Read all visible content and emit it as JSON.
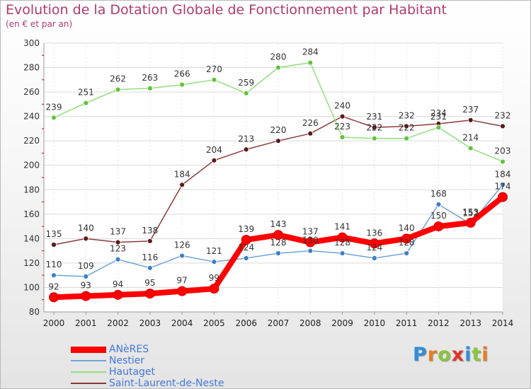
{
  "header": {
    "title": "Evolution de la Dotation Globale de Fonctionnement par Habitant",
    "subtitle": "(en € et par an)"
  },
  "chart_data": {
    "type": "line",
    "title": "Evolution de la Dotation Globale de Fonctionnement par Habitant",
    "subtitle": "(en € et par an)",
    "xlabel": "",
    "ylabel": "",
    "x": [
      2000,
      2001,
      2002,
      2003,
      2004,
      2005,
      2006,
      2007,
      2008,
      2009,
      2010,
      2011,
      2012,
      2013,
      2014
    ],
    "ylim": [
      80,
      300
    ],
    "yticks": [
      80,
      100,
      120,
      140,
      160,
      180,
      200,
      220,
      240,
      260,
      280,
      300
    ],
    "grid": "horizontal",
    "legend_position": "bottom-left",
    "series": [
      {
        "name": "ANèRES",
        "color": "#ff0000",
        "marker_color": "#ff0000",
        "emphasis": true,
        "values": [
          92,
          93,
          94,
          95,
          97,
          99,
          139,
          143,
          137,
          141,
          136,
          140,
          150,
          153,
          174
        ],
        "labels": [
          "92",
          "93",
          "94",
          "95",
          "97",
          "99",
          "139",
          "143",
          "137",
          "141",
          "136",
          "140",
          "150",
          "153",
          "174"
        ]
      },
      {
        "name": "Nestier",
        "color": "#6fa3d8",
        "marker_color": "#3d7fc4",
        "values": [
          110,
          109,
          123,
          116,
          126,
          121,
          124,
          128,
          130,
          128,
          124,
          128,
          168,
          152,
          184
        ],
        "labels": [
          "110",
          "109",
          "123",
          "116",
          "126",
          "121",
          "124",
          "128",
          "130",
          "128",
          "124",
          "128",
          "168",
          "152",
          "184"
        ]
      },
      {
        "name": "Hautaget",
        "color": "#8fe07a",
        "marker_color": "#64c23c",
        "values": [
          239,
          251,
          262,
          263,
          266,
          270,
          259,
          280,
          284,
          223,
          222,
          222,
          231,
          214,
          203
        ],
        "labels": [
          "239",
          "251",
          "262",
          "263",
          "266",
          "270",
          "259",
          "280",
          "284",
          "223",
          "222",
          "222",
          "231",
          "214",
          "203"
        ]
      },
      {
        "name": "Saint-Laurent-de-Neste",
        "color": "#8b3a3a",
        "marker_color": "#5a1a1a",
        "values": [
          135,
          140,
          137,
          138,
          184,
          204,
          213,
          220,
          226,
          240,
          231,
          232,
          234,
          237,
          232
        ],
        "labels": [
          "135",
          "140",
          "137",
          "138",
          "184",
          "204",
          "213",
          "220",
          "226",
          "240",
          "231",
          "232",
          "234",
          "237",
          "232"
        ]
      }
    ]
  },
  "legend": {
    "items": [
      {
        "label": "ANèRES",
        "color": "#ff0000"
      },
      {
        "label": "Nestier",
        "color": "#6fa3d8"
      },
      {
        "label": "Hautaget",
        "color": "#8fe07a"
      },
      {
        "label": "Saint-Laurent-de-Neste",
        "color": "#8b3a3a"
      }
    ]
  },
  "brand": {
    "text": "Proxiti",
    "letters": [
      "P",
      "r",
      "o",
      "x",
      "i",
      "t",
      "i"
    ],
    "colors": [
      "#2f8fd8",
      "#e87c1e",
      "#8bc53f",
      "#e5322d",
      "#2f8fd8",
      "#8bc53f",
      "#e87c1e"
    ]
  }
}
